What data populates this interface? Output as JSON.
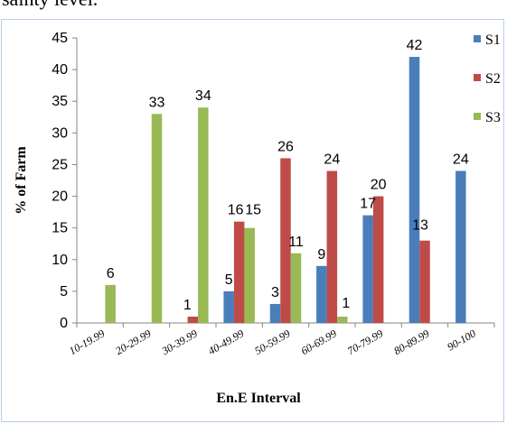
{
  "page": {
    "top_text": "sainty level."
  },
  "chart_data": {
    "type": "bar",
    "title": "",
    "xlabel": "En.E Interval",
    "ylabel": "% of Farm",
    "ylim": [
      0,
      45
    ],
    "yticks": [
      0,
      5,
      10,
      15,
      20,
      25,
      30,
      35,
      40,
      45
    ],
    "grid": false,
    "legend_position": "right",
    "categories": [
      "10-19.99",
      "20-29.99",
      "30-39.99",
      "40-49.99",
      "50-59.99",
      "60-69.99",
      "70-79.99",
      "80-89.99",
      "90-100"
    ],
    "series": [
      {
        "name": "S1",
        "color": "#4a7ebb",
        "values": [
          0,
          0,
          0,
          5,
          3,
          9,
          17,
          42,
          24
        ],
        "labels": [
          "",
          "",
          "",
          "5",
          "3",
          "9",
          "17",
          "42",
          "24"
        ]
      },
      {
        "name": "S2",
        "color": "#be4b48",
        "values": [
          0,
          0,
          1,
          16,
          26,
          24,
          20,
          13,
          0
        ],
        "labels": [
          "",
          "",
          "1",
          "16",
          "26",
          "24",
          "20",
          "13",
          ""
        ]
      },
      {
        "name": "S3",
        "color": "#98b954",
        "values": [
          6,
          33,
          34,
          15,
          11,
          1,
          0,
          0,
          0
        ],
        "labels": [
          "6",
          "33",
          "34",
          "15",
          "11",
          "1",
          "",
          "",
          ""
        ]
      }
    ]
  }
}
